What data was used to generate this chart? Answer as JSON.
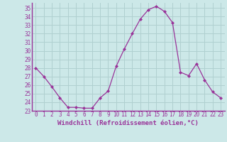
{
  "x": [
    0,
    1,
    2,
    3,
    4,
    5,
    6,
    7,
    8,
    9,
    10,
    11,
    12,
    13,
    14,
    15,
    16,
    17,
    18,
    19,
    20,
    21,
    22,
    23
  ],
  "y": [
    28.0,
    27.0,
    25.8,
    24.5,
    23.4,
    23.4,
    23.3,
    23.3,
    24.5,
    25.3,
    28.2,
    30.2,
    32.0,
    33.7,
    34.8,
    35.2,
    34.6,
    33.3,
    27.5,
    27.1,
    28.5,
    26.6,
    25.2,
    24.5
  ],
  "line_color": "#993399",
  "marker": "D",
  "marker_size": 2.0,
  "bg_color": "#cce8e8",
  "grid_color": "#b0d0d0",
  "xlabel": "Windchill (Refroidissement éolien,°C)",
  "xlabel_color": "#993399",
  "tick_color": "#993399",
  "axis_color": "#993399",
  "ylim": [
    23,
    35.6
  ],
  "yticks": [
    23,
    24,
    25,
    26,
    27,
    28,
    29,
    30,
    31,
    32,
    33,
    34,
    35
  ],
  "xlim": [
    -0.5,
    23.5
  ],
  "xticks": [
    0,
    1,
    2,
    3,
    4,
    5,
    6,
    7,
    8,
    9,
    10,
    11,
    12,
    13,
    14,
    15,
    16,
    17,
    18,
    19,
    20,
    21,
    22,
    23
  ],
  "tick_fontsize": 5.5,
  "xlabel_fontsize": 6.5
}
